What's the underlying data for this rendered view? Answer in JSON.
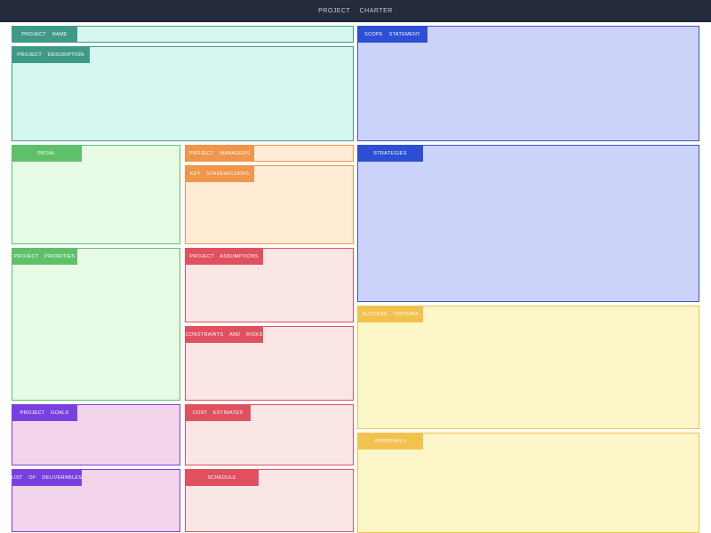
{
  "header": {
    "title": "PROJECT CHARTER"
  },
  "sections": [
    {
      "label": "PROJECT NAME"
    },
    {
      "label": "PROJECT DESCRIPTION"
    },
    {
      "label": "SCOPE STATEMENT"
    },
    {
      "label": "PATIAL"
    },
    {
      "label": "PROJECT MANAGERS"
    },
    {
      "label": "KEY STAKEHOLDERS"
    },
    {
      "label": "STRATEGIES"
    },
    {
      "label": "PROJECT PRIORITIES"
    },
    {
      "label": "PROJECT ASSUMPTIONS"
    },
    {
      "label": "SUCCESS CRITERIA"
    },
    {
      "label": "CONSTRAINTS AND RISKS"
    },
    {
      "label": "PROJECT GOALS"
    },
    {
      "label": "COST ESTIMATES"
    },
    {
      "label": "APPROVALS"
    },
    {
      "label": "LIST OF DELIVERABLES"
    },
    {
      "label": "SCHEDULE"
    }
  ]
}
